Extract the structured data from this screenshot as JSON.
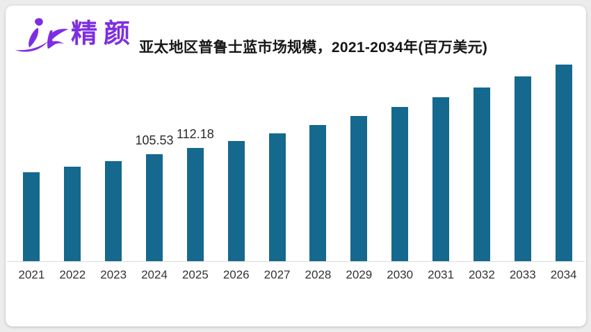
{
  "brand": {
    "logo_text": "精颜",
    "logo_color": "#7d2ee2",
    "logo_icon": "jc-figure-swoosh-icon"
  },
  "chart_data": {
    "type": "bar",
    "title": "亚太地区普鲁士蓝市场规模，2021-2034年(百万美元)",
    "xlabel": "",
    "ylabel": "",
    "unit": "百万美元",
    "bar_color": "#15688e",
    "axis_line_color": "#dcdcdc",
    "label_color": "#2b2b2b",
    "tick_color": "#333333",
    "grid": false,
    "legend": false,
    "ylim": [
      0,
      200
    ],
    "categories": [
      "2021",
      "2022",
      "2023",
      "2024",
      "2025",
      "2026",
      "2027",
      "2028",
      "2029",
      "2030",
      "2031",
      "2032",
      "2033",
      "2034"
    ],
    "points": [
      {
        "year": "2021",
        "value": 87.9,
        "label": ""
      },
      {
        "year": "2022",
        "value": 93.5,
        "label": ""
      },
      {
        "year": "2023",
        "value": 99.3,
        "label": ""
      },
      {
        "year": "2024",
        "value": 105.53,
        "label": "105.53"
      },
      {
        "year": "2025",
        "value": 112.18,
        "label": "112.18"
      },
      {
        "year": "2026",
        "value": 119.2,
        "label": ""
      },
      {
        "year": "2027",
        "value": 126.8,
        "label": ""
      },
      {
        "year": "2028",
        "value": 134.8,
        "label": ""
      },
      {
        "year": "2029",
        "value": 143.3,
        "label": ""
      },
      {
        "year": "2030",
        "value": 152.3,
        "label": ""
      },
      {
        "year": "2031",
        "value": 161.9,
        "label": ""
      },
      {
        "year": "2032",
        "value": 172.1,
        "label": ""
      },
      {
        "year": "2033",
        "value": 183.0,
        "label": ""
      },
      {
        "year": "2034",
        "value": 194.5,
        "label": ""
      }
    ]
  }
}
